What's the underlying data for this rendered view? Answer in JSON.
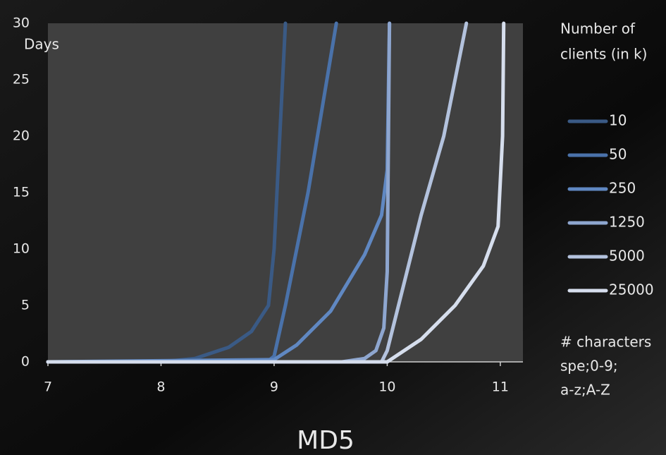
{
  "chart_data": {
    "type": "line",
    "title": "MD5",
    "y_label": "Days",
    "legend_title_lines": [
      "Number of",
      "clients (in k)"
    ],
    "note_lines": [
      "# characters",
      "spe;0-9;",
      "a-z;A-Z"
    ],
    "xlim": [
      7,
      11.2
    ],
    "ylim": [
      0,
      30
    ],
    "xticks": [
      7,
      8,
      9,
      10,
      11
    ],
    "yticks": [
      0,
      5,
      10,
      15,
      20,
      25,
      30
    ],
    "series": [
      {
        "name": "10",
        "color": "#3a5a85",
        "x": [
          7,
          8,
          8.3,
          8.6,
          8.8,
          8.95,
          9.0,
          9.05,
          9.1
        ],
        "values": [
          0,
          0,
          0.3,
          1.3,
          2.7,
          5,
          10,
          20,
          30
        ]
      },
      {
        "name": "50",
        "color": "#4a72aa",
        "x": [
          7,
          8.95,
          9.0,
          9.1,
          9.3,
          9.55
        ],
        "values": [
          0,
          0.1,
          0.5,
          5,
          15,
          30
        ]
      },
      {
        "name": "250",
        "color": "#6088c2",
        "x": [
          7,
          9.0,
          9.2,
          9.5,
          9.8,
          9.95,
          10.0,
          10.02
        ],
        "values": [
          0,
          0.2,
          1.5,
          4.5,
          9.5,
          13,
          17,
          30
        ]
      },
      {
        "name": "1250",
        "color": "#8ea6cf",
        "x": [
          7,
          9.6,
          9.8,
          9.9,
          9.97,
          10.0,
          10.02
        ],
        "values": [
          0,
          0,
          0.3,
          1,
          3,
          8,
          30
        ]
      },
      {
        "name": "5000",
        "color": "#b3c2dd",
        "x": [
          7,
          9.95,
          10.0,
          10.1,
          10.3,
          10.5,
          10.7
        ],
        "values": [
          0,
          0,
          1,
          5,
          13,
          20,
          30
        ]
      },
      {
        "name": "25000",
        "color": "#d6deed",
        "x": [
          7,
          10.0,
          10.3,
          10.6,
          10.85,
          10.98,
          11.02,
          11.03
        ],
        "values": [
          0,
          0,
          2,
          5,
          8.5,
          12,
          20,
          30
        ]
      }
    ]
  }
}
